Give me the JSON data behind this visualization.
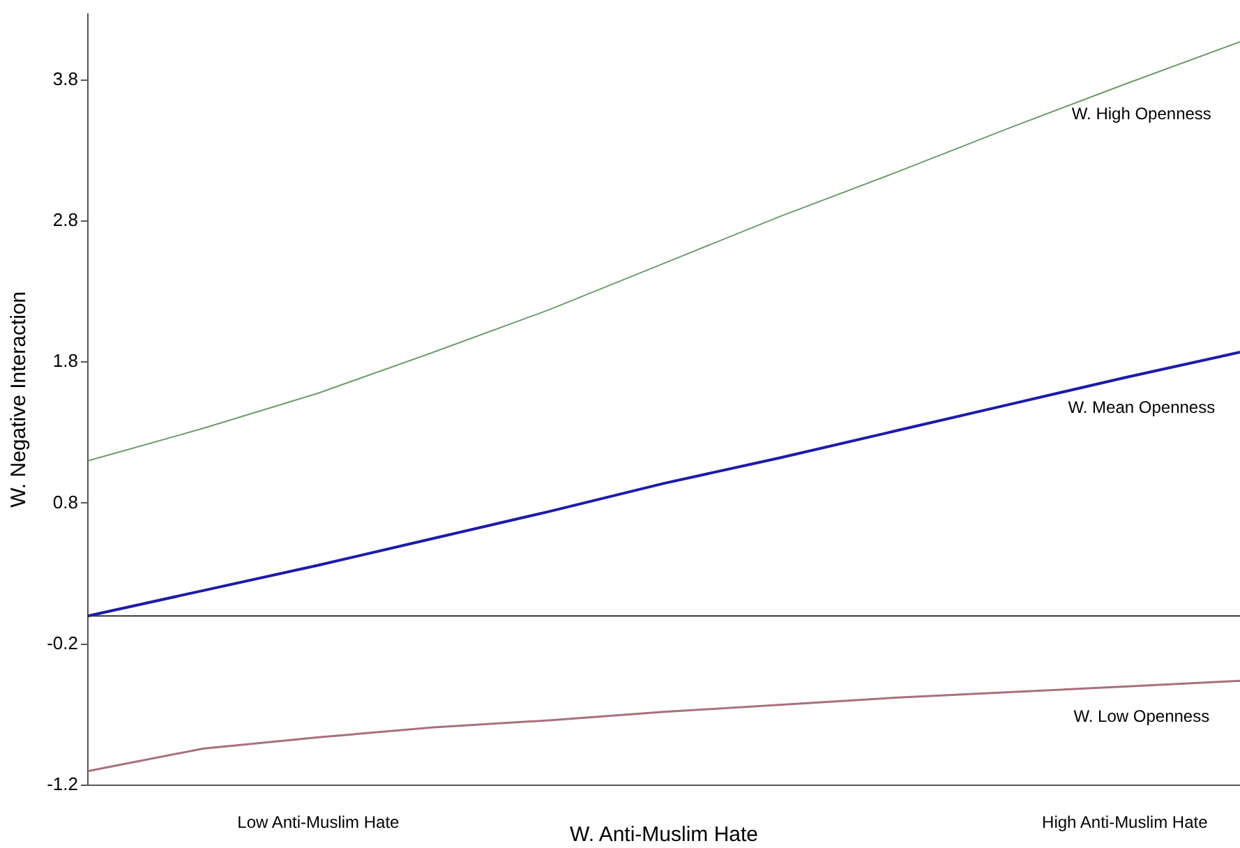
{
  "chart_data": {
    "type": "line",
    "xlabel": "W. Anti-Muslim Hate",
    "ylabel": "W. Negative Interaction",
    "categories": [
      null,
      null,
      "Low Anti-Muslim Hate",
      null,
      null,
      null,
      null,
      null,
      null,
      "High Anti-Muslim Hate",
      null
    ],
    "ylim": [
      -1.2,
      4.27
    ],
    "yticks": [
      -1.2,
      -0.2,
      0.8,
      1.8,
      2.8,
      3.8
    ],
    "marker": "none",
    "line_style": "solid",
    "ref_lines": [
      {
        "axis": "y",
        "value": 0,
        "color": "#333333"
      }
    ],
    "series": [
      {
        "name": "W. High Openness",
        "color": "#6f9a6f",
        "values": [
          1.1,
          1.33,
          1.58,
          1.87,
          2.17,
          2.5,
          2.83,
          3.14,
          3.46,
          3.77,
          4.07
        ]
      },
      {
        "name": "W. Mean Openness",
        "color": "#1c1ca8",
        "values": [
          0.0,
          0.18,
          0.36,
          0.55,
          0.74,
          0.94,
          1.12,
          1.31,
          1.5,
          1.69,
          1.87
        ]
      },
      {
        "name": "W. Low Openness",
        "color": "#a8707c",
        "values": [
          -1.1,
          -0.94,
          -0.86,
          -0.79,
          -0.74,
          -0.68,
          -0.63,
          -0.58,
          -0.54,
          -0.5,
          -0.46
        ]
      }
    ]
  }
}
